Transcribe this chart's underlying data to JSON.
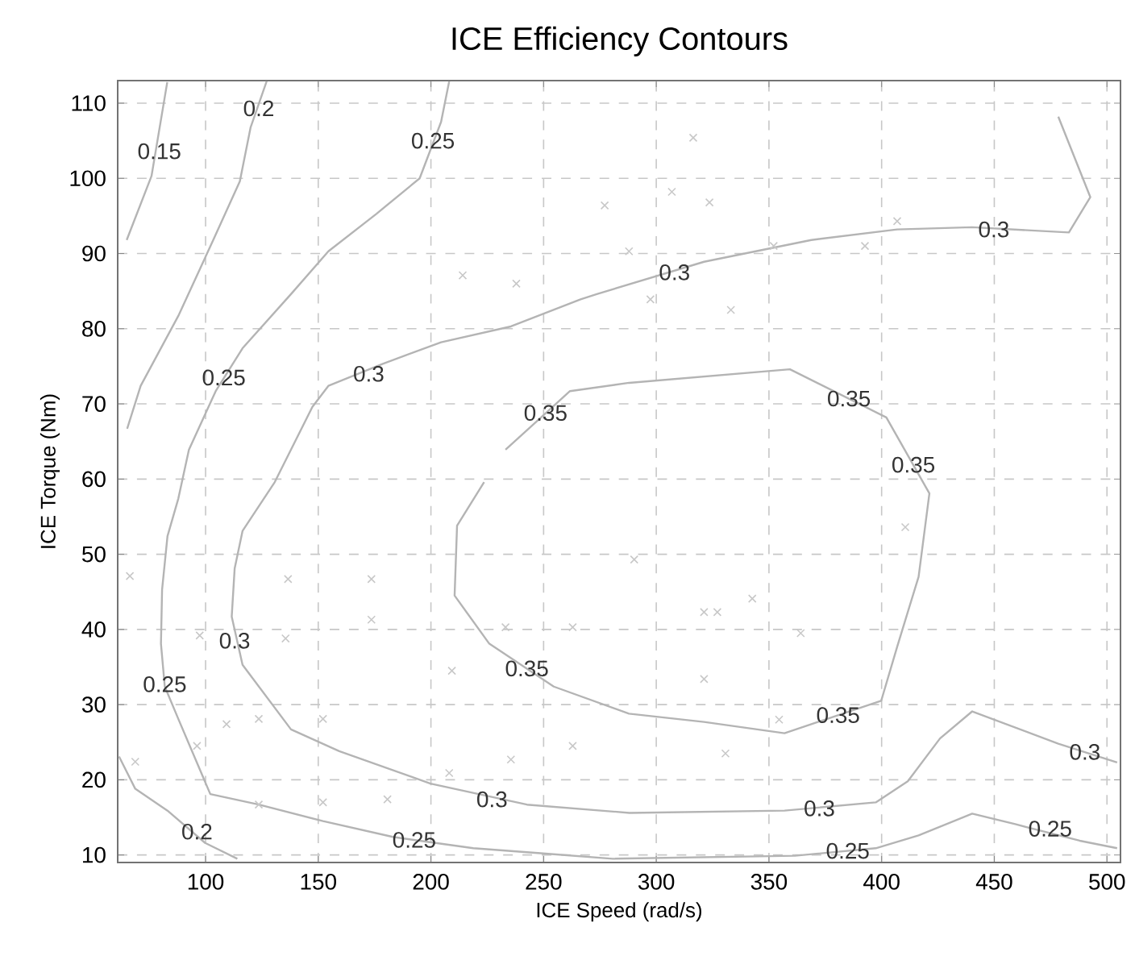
{
  "chart_data": {
    "type": "line",
    "title": "ICE Efficiency Contours",
    "xlabel": "ICE Speed (rad/s)",
    "ylabel": "ICE Torque (Nm)",
    "xlim": [
      61,
      506
    ],
    "ylim": [
      9,
      113
    ],
    "xticks": [
      100,
      150,
      200,
      250,
      300,
      350,
      400,
      450,
      500
    ],
    "yticks": [
      10,
      20,
      30,
      40,
      50,
      60,
      70,
      80,
      90,
      100,
      110
    ],
    "grid": true,
    "series": [
      {
        "color": "#b4b4b4",
        "x": [
          83,
          76,
          65
        ],
        "values": [
          112.8,
          100.3,
          91.8
        ]
      },
      {
        "color": "#b4b4b4",
        "x": [
          127.1,
          120,
          115.2,
          103.4,
          87.9,
          71.2,
          65.2
        ],
        "values": [
          112.9,
          106.8,
          99.6,
          91.8,
          81.7,
          72.4,
          66.7
        ]
      },
      {
        "color": "#b4b4b4",
        "x": [
          61.6,
          68.8,
          83.1,
          99.8,
          114.1
        ],
        "values": [
          23.1,
          18.8,
          15.9,
          11.6,
          9.5
        ]
      },
      {
        "color": "#b4b4b4",
        "x": [
          208.1,
          204.5,
          195,
          175.9,
          154.5,
          137.9,
          116.4,
          104.5,
          92.6,
          87.9,
          83.1,
          80.7,
          80.2,
          81.9,
          87.9,
          102.1,
          123.6,
          152.1,
          183.1,
          218.8,
          249.8,
          280.7,
          361.6,
          397.4,
          416.4,
          440.2,
          459.3,
          487.9,
          504.5
        ],
        "values": [
          112.9,
          107.5,
          100,
          95.3,
          90.3,
          84.6,
          77.4,
          71.7,
          63.9,
          57.4,
          52.4,
          45.3,
          38.1,
          32.4,
          28.1,
          18.1,
          16.7,
          14.5,
          12.4,
          10.9,
          10.2,
          9.5,
          9.9,
          10.9,
          12.6,
          15.5,
          14.1,
          11.9,
          10.9
        ]
      },
      {
        "color": "#b4b4b4",
        "x": [
          478.4,
          492.6,
          483.1,
          440.2,
          406.9,
          368.8,
          321.2,
          273.6,
          266.4,
          235.5,
          204.5,
          178.4,
          154.5,
          147.4,
          130.7,
          116.4,
          112.9,
          111.6,
          116.4,
          137.9,
          159.3,
          199.8,
          242.6,
          288.1,
          356.9,
          397.4,
          411.6,
          425.9,
          440.2,
          478.4,
          504.5
        ],
        "values": [
          108.2,
          97.5,
          92.8,
          93.5,
          93.2,
          91.8,
          88.9,
          84.6,
          83.9,
          80.3,
          78.2,
          75.3,
          72.4,
          69.6,
          59.6,
          53.1,
          48.1,
          41.7,
          35.3,
          26.7,
          23.8,
          19.5,
          16.7,
          15.6,
          15.9,
          17.0,
          19.8,
          25.5,
          29.1,
          24.8,
          22.3
        ]
      },
      {
        "color": "#b4b4b4",
        "x": [
          233.1,
          261.7,
          287.9,
          359.3,
          402.1,
          421.2,
          416.4,
          406.9,
          399.8,
          356.9,
          321.2,
          287.9,
          254.5,
          225.9,
          210.5,
          211.6,
          223.6
        ],
        "values": [
          63.9,
          71.7,
          72.8,
          74.6,
          68.2,
          58.1,
          47,
          37.7,
          30.5,
          26.2,
          27.7,
          28.8,
          32.4,
          38.1,
          44.5,
          53.8,
          59.6
        ]
      },
      {
        "type": "scatter",
        "marker": "cross",
        "color": "#c8c8c8",
        "x": [
          66.4,
          97.4,
          136.6,
          135.5,
          173.6,
          173.6,
          209.3,
          208.1,
          235.5,
          233.1,
          262.9,
          262.9,
          123.6,
          152.1,
          109.3,
          96.2,
          152.1,
          180.7,
          123.6,
          68.8,
          290.2,
          321.2,
          327.1,
          342.6,
          321.2,
          364.1,
          354.5,
          330.7,
          410.5,
          306.9,
          323.6,
          316.4,
          406.9,
          297.4,
          333.1,
          352.1,
          392.6,
          287.9,
          214.1,
          277.1,
          237.9
        ],
        "values": [
          47.1,
          39.2,
          46.7,
          38.8,
          46.7,
          41.3,
          34.5,
          20.9,
          22.7,
          40.3,
          40.3,
          24.5,
          28.1,
          28.1,
          27.4,
          24.5,
          17,
          17.4,
          16.7,
          22.4,
          49.3,
          42.3,
          42.3,
          44.1,
          33.4,
          39.5,
          28,
          23.5,
          53.6,
          98.2,
          96.8,
          105.4,
          94.3,
          83.9,
          82.5,
          91,
          91,
          90.3,
          87.1,
          96.4,
          86
        ]
      }
    ],
    "annotations": [
      {
        "text": "0.15",
        "x": 79.5,
        "y": 103.6
      },
      {
        "text": "0.2",
        "x": 123.6,
        "y": 109.3
      },
      {
        "text": "0.25",
        "x": 200.9,
        "y": 105
      },
      {
        "text": "0.25",
        "x": 108.1,
        "y": 73.5
      },
      {
        "text": "0.3",
        "x": 172.4,
        "y": 74
      },
      {
        "text": "0.35",
        "x": 250.9,
        "y": 68.8
      },
      {
        "text": "0.3",
        "x": 308.1,
        "y": 87.5
      },
      {
        "text": "0.3",
        "x": 449.8,
        "y": 93.2
      },
      {
        "text": "0.35",
        "x": 385.5,
        "y": 70.7
      },
      {
        "text": "0.35",
        "x": 414.1,
        "y": 61.9
      },
      {
        "text": "0.3",
        "x": 112.9,
        "y": 38.5
      },
      {
        "text": "0.25",
        "x": 81.9,
        "y": 32.7
      },
      {
        "text": "0.35",
        "x": 242.6,
        "y": 34.8
      },
      {
        "text": "0.2",
        "x": 96.2,
        "y": 13.1
      },
      {
        "text": "0.3",
        "x": 227.1,
        "y": 17.4
      },
      {
        "text": "0.25",
        "x": 192.6,
        "y": 12
      },
      {
        "text": "0.35",
        "x": 380.7,
        "y": 28.6
      },
      {
        "text": "0.3",
        "x": 372.4,
        "y": 16.2
      },
      {
        "text": "0.25",
        "x": 385,
        "y": 10.55
      },
      {
        "text": "0.25",
        "x": 474.8,
        "y": 13.5
      },
      {
        "text": "0.3",
        "x": 490.2,
        "y": 23.7
      }
    ]
  }
}
